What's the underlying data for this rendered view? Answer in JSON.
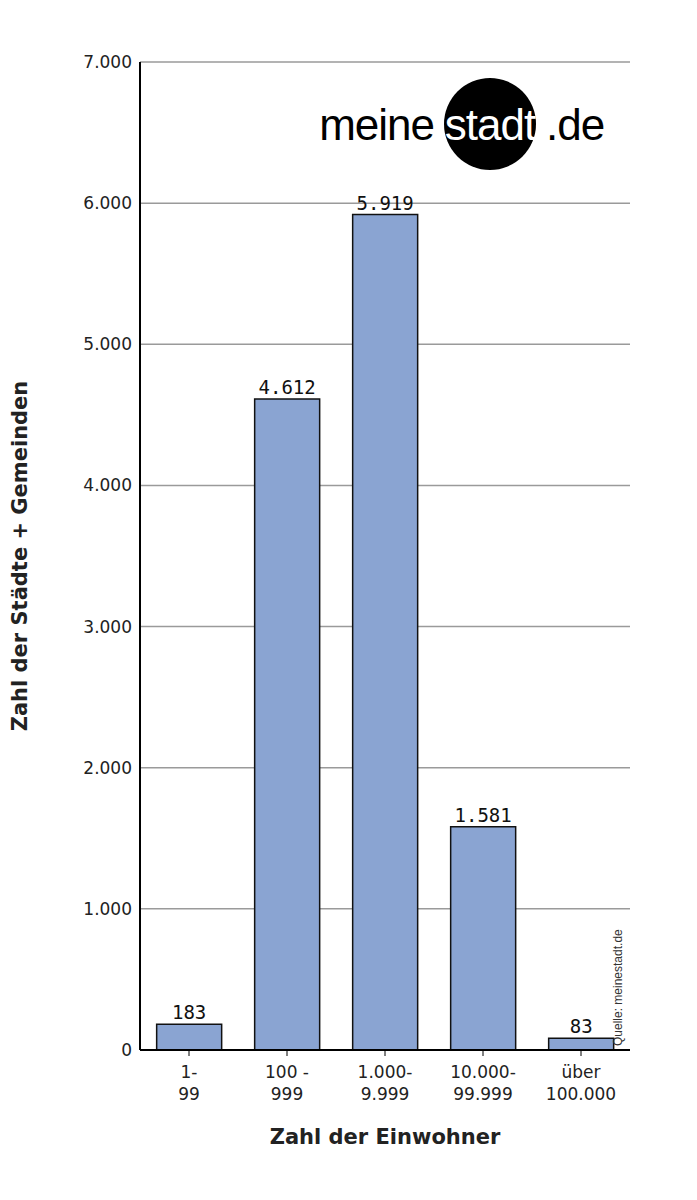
{
  "chart_data": {
    "type": "bar",
    "categories": [
      "1-\n99",
      "100 -\n999",
      "1.000-\n9.999",
      "10.000-\n99.999",
      "über\n100.000"
    ],
    "values": [
      183,
      4612,
      5919,
      1581,
      83
    ],
    "value_labels": [
      "183",
      "4.612",
      "5.919",
      "1.581",
      "83"
    ],
    "color": "#8aa4d2",
    "ylim": [
      0,
      7000
    ],
    "yticks": [
      0,
      {
        "value": 1000,
        "label": "1.000"
      },
      {
        "value": 2000,
        "label": "2.000"
      },
      {
        "value": 3000,
        "label": "3.000"
      },
      {
        "value": 4000,
        "label": "4.000"
      },
      {
        "value": 5000,
        "label": "5.000"
      },
      {
        "value": 6000,
        "label": "6.000"
      },
      {
        "value": 7000,
        "label": "7.000"
      }
    ],
    "grid": true,
    "data_labels": true,
    "y_label": "Zahl der Städte + Gemeinden",
    "x_label": "Zahl der Einwohner",
    "logo": {
      "before": "meine",
      "highlight": "stadt",
      "after": ".de"
    },
    "source": "Quelle: meinestadt.de"
  }
}
